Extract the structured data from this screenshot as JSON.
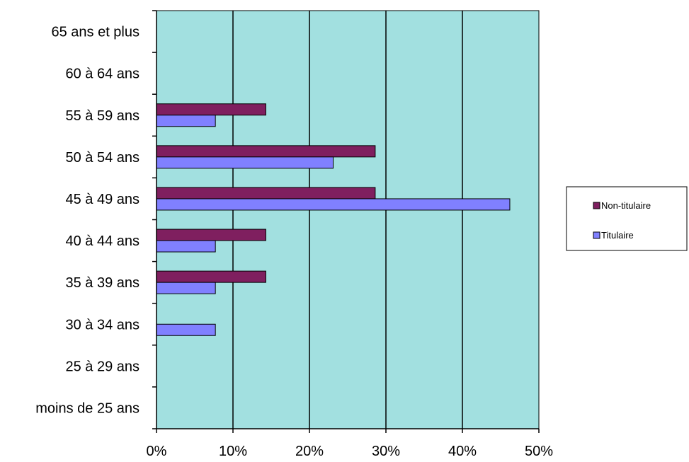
{
  "chart_data": {
    "type": "bar",
    "orientation": "horizontal",
    "categories": [
      "moins de 25 ans",
      "25 à 29 ans",
      "30 à 34 ans",
      "35 à 39 ans",
      "40 à 44 ans",
      "45 à 49 ans",
      "50 à 54 ans",
      "55 à 59 ans",
      "60 à 64 ans",
      "65 ans et plus"
    ],
    "series": [
      {
        "name": "Non-titulaire",
        "color": "#7f1f5f",
        "values": [
          0,
          0,
          0,
          0.143,
          0.143,
          0.286,
          0.286,
          0.143,
          0,
          0
        ]
      },
      {
        "name": "Titulaire",
        "color": "#8080ff",
        "values": [
          0,
          0,
          0.077,
          0.077,
          0.077,
          0.462,
          0.231,
          0.077,
          0,
          0
        ]
      }
    ],
    "xlim": [
      0,
      0.5
    ],
    "x_ticks": [
      0,
      0.1,
      0.2,
      0.3,
      0.4,
      0.5
    ],
    "x_tick_labels": [
      "0%",
      "10%",
      "20%",
      "30%",
      "40%",
      "50%"
    ],
    "title": "",
    "xlabel": "",
    "ylabel": "",
    "grid": "vertical",
    "legend_position": "right",
    "plot_background": "#a2e0e0"
  }
}
